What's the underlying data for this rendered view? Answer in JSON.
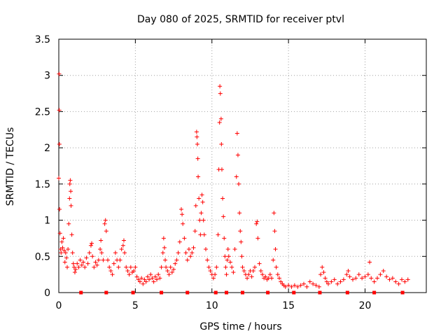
{
  "chart_data": {
    "type": "scatter",
    "title": "Day 080 of 2025, SRMTID for receiver ptvl",
    "xlabel": "GPS time / hours",
    "ylabel": "SRMTID / TECUs",
    "xlim": [
      0,
      24
    ],
    "ylim": [
      0,
      3.5
    ],
    "xticks": [
      0,
      5,
      10,
      15,
      20
    ],
    "yticks": [
      0,
      0.5,
      1,
      1.5,
      2,
      2.5,
      3,
      3.5
    ],
    "x_tick_labels": [
      "0",
      "5",
      "10",
      "15",
      "20"
    ],
    "y_tick_labels": [
      "0",
      "0.5",
      "1",
      "1.5",
      "2",
      "2.5",
      "3",
      "3.5"
    ],
    "grid": true,
    "marker": "+",
    "color": "#ff0000",
    "series": [
      {
        "name": "SRMTID",
        "points": [
          [
            0.0,
            1.58
          ],
          [
            0.02,
            3.02
          ],
          [
            0.03,
            2.52
          ],
          [
            0.04,
            2.05
          ],
          [
            0.05,
            1.15
          ],
          [
            0.08,
            0.82
          ],
          [
            0.12,
            0.6
          ],
          [
            0.15,
            0.55
          ],
          [
            0.2,
            0.7
          ],
          [
            0.25,
            0.62
          ],
          [
            0.3,
            0.75
          ],
          [
            0.35,
            0.58
          ],
          [
            0.4,
            0.42
          ],
          [
            0.45,
            0.55
          ],
          [
            0.5,
            0.48
          ],
          [
            0.55,
            0.35
          ],
          [
            0.6,
            0.6
          ],
          [
            0.65,
            0.95
          ],
          [
            0.7,
            1.3
          ],
          [
            0.72,
            1.5
          ],
          [
            0.75,
            1.55
          ],
          [
            0.78,
            1.4
          ],
          [
            0.8,
            1.2
          ],
          [
            0.85,
            0.8
          ],
          [
            0.9,
            0.55
          ],
          [
            0.95,
            0.4
          ],
          [
            1.0,
            0.35
          ],
          [
            1.05,
            0.28
          ],
          [
            1.1,
            0.32
          ],
          [
            1.2,
            0.4
          ],
          [
            1.3,
            0.35
          ],
          [
            1.4,
            0.45
          ],
          [
            1.5,
            0.38
          ],
          [
            1.6,
            0.42
          ],
          [
            1.7,
            0.35
          ],
          [
            1.8,
            0.48
          ],
          [
            1.9,
            0.4
          ],
          [
            2.0,
            0.55
          ],
          [
            2.1,
            0.65
          ],
          [
            2.15,
            0.68
          ],
          [
            2.2,
            0.5
          ],
          [
            2.3,
            0.35
          ],
          [
            2.4,
            0.42
          ],
          [
            2.5,
            0.38
          ],
          [
            2.6,
            0.45
          ],
          [
            2.7,
            0.6
          ],
          [
            2.75,
            0.72
          ],
          [
            2.8,
            0.55
          ],
          [
            2.9,
            0.45
          ],
          [
            3.0,
            0.95
          ],
          [
            3.05,
            1.0
          ],
          [
            3.1,
            0.85
          ],
          [
            3.2,
            0.45
          ],
          [
            3.3,
            0.35
          ],
          [
            3.4,
            0.3
          ],
          [
            3.5,
            0.25
          ],
          [
            3.6,
            0.4
          ],
          [
            3.7,
            0.55
          ],
          [
            3.8,
            0.45
          ],
          [
            3.9,
            0.35
          ],
          [
            4.0,
            0.45
          ],
          [
            4.1,
            0.6
          ],
          [
            4.2,
            0.65
          ],
          [
            4.25,
            0.72
          ],
          [
            4.3,
            0.55
          ],
          [
            4.4,
            0.35
          ],
          [
            4.5,
            0.3
          ],
          [
            4.6,
            0.25
          ],
          [
            4.7,
            0.35
          ],
          [
            4.8,
            0.28
          ],
          [
            4.9,
            0.3
          ],
          [
            5.0,
            0.35
          ],
          [
            5.1,
            0.22
          ],
          [
            5.2,
            0.18
          ],
          [
            5.3,
            0.15
          ],
          [
            5.4,
            0.2
          ],
          [
            5.5,
            0.12
          ],
          [
            5.6,
            0.18
          ],
          [
            5.7,
            0.15
          ],
          [
            5.8,
            0.22
          ],
          [
            5.9,
            0.18
          ],
          [
            6.0,
            0.25
          ],
          [
            6.1,
            0.2
          ],
          [
            6.2,
            0.15
          ],
          [
            6.3,
            0.22
          ],
          [
            6.4,
            0.18
          ],
          [
            6.5,
            0.25
          ],
          [
            6.6,
            0.2
          ],
          [
            6.7,
            0.35
          ],
          [
            6.8,
            0.55
          ],
          [
            6.85,
            0.75
          ],
          [
            6.9,
            0.62
          ],
          [
            6.95,
            0.45
          ],
          [
            7.0,
            0.35
          ],
          [
            7.1,
            0.3
          ],
          [
            7.2,
            0.25
          ],
          [
            7.3,
            0.35
          ],
          [
            7.4,
            0.28
          ],
          [
            7.5,
            0.32
          ],
          [
            7.6,
            0.4
          ],
          [
            7.7,
            0.45
          ],
          [
            7.8,
            0.55
          ],
          [
            7.9,
            0.7
          ],
          [
            8.0,
            1.15
          ],
          [
            8.05,
            1.08
          ],
          [
            8.1,
            0.95
          ],
          [
            8.2,
            0.75
          ],
          [
            8.3,
            0.55
          ],
          [
            8.4,
            0.45
          ],
          [
            8.5,
            0.6
          ],
          [
            8.6,
            0.5
          ],
          [
            8.7,
            0.55
          ],
          [
            8.8,
            0.62
          ],
          [
            8.9,
            0.85
          ],
          [
            8.95,
            1.2
          ],
          [
            9.0,
            2.22
          ],
          [
            9.02,
            2.15
          ],
          [
            9.05,
            2.05
          ],
          [
            9.08,
            1.85
          ],
          [
            9.1,
            1.6
          ],
          [
            9.15,
            1.3
          ],
          [
            9.2,
            1.0
          ],
          [
            9.25,
            0.8
          ],
          [
            9.3,
            1.1
          ],
          [
            9.35,
            1.35
          ],
          [
            9.4,
            1.25
          ],
          [
            9.45,
            1.0
          ],
          [
            9.5,
            0.8
          ],
          [
            9.6,
            0.6
          ],
          [
            9.7,
            0.45
          ],
          [
            9.8,
            0.35
          ],
          [
            9.9,
            0.3
          ],
          [
            10.0,
            0.25
          ],
          [
            10.1,
            0.2
          ],
          [
            10.2,
            0.25
          ],
          [
            10.3,
            0.35
          ],
          [
            10.4,
            0.8
          ],
          [
            10.45,
            1.7
          ],
          [
            10.5,
            2.35
          ],
          [
            10.52,
            2.85
          ],
          [
            10.55,
            2.75
          ],
          [
            10.6,
            2.4
          ],
          [
            10.62,
            2.05
          ],
          [
            10.65,
            1.7
          ],
          [
            10.7,
            1.3
          ],
          [
            10.75,
            1.05
          ],
          [
            10.8,
            0.75
          ],
          [
            10.85,
            0.5
          ],
          [
            10.9,
            0.35
          ],
          [
            10.95,
            0.25
          ],
          [
            11.0,
            0.45
          ],
          [
            11.05,
            0.6
          ],
          [
            11.1,
            0.5
          ],
          [
            11.2,
            0.42
          ],
          [
            11.3,
            0.35
          ],
          [
            11.4,
            0.28
          ],
          [
            11.5,
            0.6
          ],
          [
            11.6,
            1.6
          ],
          [
            11.65,
            2.2
          ],
          [
            11.7,
            1.9
          ],
          [
            11.75,
            1.5
          ],
          [
            11.8,
            1.1
          ],
          [
            11.85,
            0.85
          ],
          [
            11.9,
            0.7
          ],
          [
            11.95,
            0.5
          ],
          [
            12.0,
            0.35
          ],
          [
            12.1,
            0.3
          ],
          [
            12.2,
            0.25
          ],
          [
            12.3,
            0.2
          ],
          [
            12.4,
            0.25
          ],
          [
            12.5,
            0.3
          ],
          [
            12.6,
            0.22
          ],
          [
            12.7,
            0.3
          ],
          [
            12.8,
            0.35
          ],
          [
            12.9,
            0.95
          ],
          [
            12.95,
            0.98
          ],
          [
            13.0,
            0.75
          ],
          [
            13.1,
            0.4
          ],
          [
            13.2,
            0.3
          ],
          [
            13.3,
            0.25
          ],
          [
            13.4,
            0.2
          ],
          [
            13.5,
            0.22
          ],
          [
            13.6,
            0.18
          ],
          [
            13.7,
            0.2
          ],
          [
            13.8,
            0.25
          ],
          [
            13.9,
            0.2
          ],
          [
            14.0,
            0.45
          ],
          [
            14.05,
            1.1
          ],
          [
            14.1,
            0.85
          ],
          [
            14.15,
            0.6
          ],
          [
            14.2,
            0.35
          ],
          [
            14.3,
            0.25
          ],
          [
            14.4,
            0.2
          ],
          [
            14.5,
            0.15
          ],
          [
            14.6,
            0.12
          ],
          [
            14.7,
            0.1
          ],
          [
            14.8,
            0.08
          ],
          [
            15.0,
            0.1
          ],
          [
            15.2,
            0.08
          ],
          [
            15.4,
            0.1
          ],
          [
            15.6,
            0.08
          ],
          [
            15.8,
            0.1
          ],
          [
            16.0,
            0.12
          ],
          [
            16.2,
            0.08
          ],
          [
            16.4,
            0.15
          ],
          [
            16.6,
            0.12
          ],
          [
            16.8,
            0.1
          ],
          [
            17.0,
            0.08
          ],
          [
            17.1,
            0.25
          ],
          [
            17.2,
            0.35
          ],
          [
            17.3,
            0.28
          ],
          [
            17.4,
            0.2
          ],
          [
            17.5,
            0.15
          ],
          [
            17.6,
            0.12
          ],
          [
            17.8,
            0.15
          ],
          [
            18.0,
            0.18
          ],
          [
            18.2,
            0.12
          ],
          [
            18.4,
            0.15
          ],
          [
            18.6,
            0.18
          ],
          [
            18.8,
            0.25
          ],
          [
            18.9,
            0.3
          ],
          [
            19.0,
            0.22
          ],
          [
            19.2,
            0.18
          ],
          [
            19.4,
            0.2
          ],
          [
            19.6,
            0.25
          ],
          [
            19.8,
            0.2
          ],
          [
            20.0,
            0.22
          ],
          [
            20.2,
            0.25
          ],
          [
            20.3,
            0.42
          ],
          [
            20.4,
            0.2
          ],
          [
            20.6,
            0.15
          ],
          [
            20.8,
            0.2
          ],
          [
            21.0,
            0.25
          ],
          [
            21.2,
            0.3
          ],
          [
            21.4,
            0.22
          ],
          [
            21.6,
            0.18
          ],
          [
            21.8,
            0.2
          ],
          [
            22.0,
            0.15
          ],
          [
            22.2,
            0.12
          ],
          [
            22.4,
            0.18
          ],
          [
            22.6,
            0.15
          ],
          [
            22.8,
            0.18
          ]
        ]
      }
    ],
    "bottom_markers_x": [
      1.45,
      3.1,
      4.85,
      6.7,
      8.4,
      10.25,
      10.95,
      12.0,
      13.65,
      15.35,
      17.05,
      18.85,
      20.6,
      22.45
    ]
  }
}
